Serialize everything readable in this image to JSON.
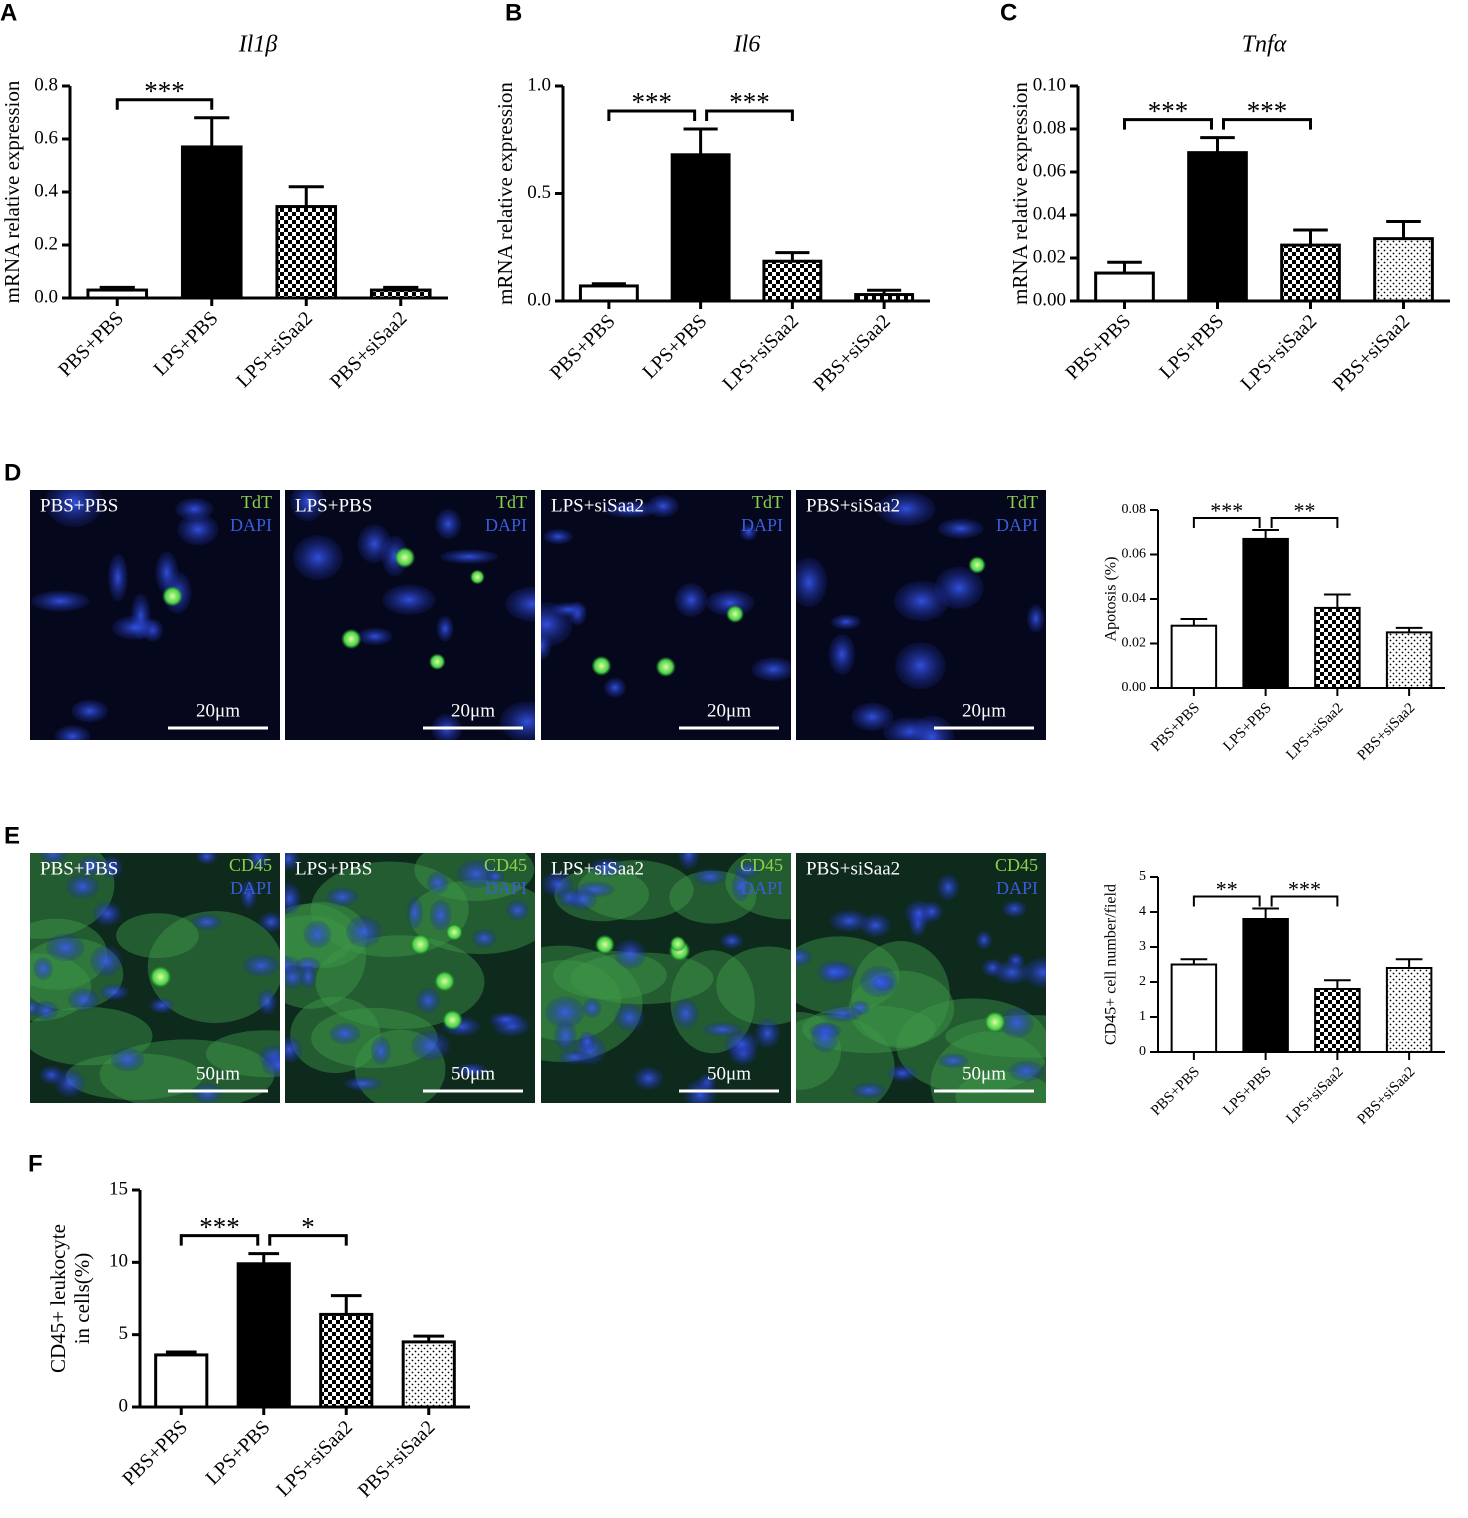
{
  "chart_data": [
    {
      "type": "bar",
      "panel_label": "A",
      "title": "Il1β",
      "ylabel": "mRNA relative expression",
      "categories": [
        "PBS+PBS",
        "LPS+PBS",
        "LPS+siSaa2",
        "PBS+siSaa2"
      ],
      "values": [
        0.03,
        0.57,
        0.345,
        0.03
      ],
      "errors": [
        0.01,
        0.11,
        0.075,
        0.01
      ],
      "fills": [
        "white",
        "black",
        "checker",
        "checker"
      ],
      "ylim": [
        0,
        0.8
      ],
      "yticks": [
        {
          "value": 0,
          "label": "0.0"
        },
        0.2,
        0.4,
        0.6,
        0.8
      ],
      "significance": [
        {
          "label": "***",
          "between": [
            0,
            1
          ]
        }
      ]
    },
    {
      "type": "bar",
      "panel_label": "B",
      "title": "Il6",
      "ylabel": "mRNA relative expression",
      "categories": [
        "PBS+PBS",
        "LPS+PBS",
        "LPS+siSaa2",
        "PBS+siSaa2"
      ],
      "values": [
        0.07,
        0.68,
        0.185,
        0.03
      ],
      "errors": [
        0.01,
        0.12,
        0.04,
        0.02
      ],
      "fills": [
        "white",
        "black",
        "checker",
        "checker"
      ],
      "ylim": [
        0,
        1
      ],
      "yticks": [
        {
          "value": 0,
          "label": "0.0"
        },
        0.5,
        {
          "value": 1,
          "label": "1.0"
        }
      ],
      "significance": [
        {
          "label": "***",
          "between": [
            0,
            1
          ]
        },
        {
          "label": "***",
          "between": [
            1,
            2
          ]
        }
      ]
    },
    {
      "type": "bar",
      "panel_label": "C",
      "title": "Tnfα",
      "ylabel": "mRNA relative expression",
      "categories": [
        "PBS+PBS",
        "LPS+PBS",
        "LPS+siSaa2",
        "PBS+siSaa2"
      ],
      "values": [
        0.013,
        0.069,
        0.026,
        0.029
      ],
      "errors": [
        0.005,
        0.007,
        0.007,
        0.008
      ],
      "fills": [
        "white",
        "black",
        "checker",
        "dots"
      ],
      "ylim": [
        0,
        0.1
      ],
      "yticks": [
        {
          "value": 0,
          "label": "0.00"
        },
        0.02,
        0.04,
        0.06,
        0.08,
        {
          "value": 0.1,
          "label": "0.10"
        }
      ],
      "significance": [
        {
          "label": "***",
          "between": [
            0,
            1
          ]
        },
        {
          "label": "***",
          "between": [
            1,
            2
          ]
        }
      ]
    },
    {
      "type": "bar",
      "ylabel": "Apotosis (%)",
      "categories": [
        "PBS+PBS",
        "LPS+PBS",
        "LPS+siSaa2",
        "PBS+siSaa2"
      ],
      "values": [
        0.028,
        0.067,
        0.036,
        0.025
      ],
      "errors": [
        0.003,
        0.004,
        0.006,
        0.002
      ],
      "fills": [
        "white",
        "black",
        "checker",
        "dots"
      ],
      "ylim": [
        0,
        0.08
      ],
      "yticks": [
        {
          "value": 0,
          "label": "0.00"
        },
        0.02,
        0.04,
        0.06,
        0.08
      ],
      "significance": [
        {
          "label": "***",
          "between": [
            0,
            1
          ]
        },
        {
          "label": "**",
          "between": [
            1,
            2
          ]
        }
      ]
    },
    {
      "type": "bar",
      "ylabel": "CD45+ cell number/field",
      "categories": [
        "PBS+PBS",
        "LPS+PBS",
        "LPS+siSaa2",
        "PBS+siSaa2"
      ],
      "values": [
        2.5,
        3.8,
        1.8,
        2.4
      ],
      "errors": [
        0.15,
        0.3,
        0.25,
        0.25
      ],
      "fills": [
        "white",
        "black",
        "checker",
        "dots"
      ],
      "ylim": [
        0,
        5
      ],
      "yticks": [
        0,
        1,
        2,
        3,
        4,
        5
      ],
      "significance": [
        {
          "label": "**",
          "between": [
            0,
            1
          ]
        },
        {
          "label": "***",
          "between": [
            1,
            2
          ]
        }
      ]
    },
    {
      "type": "bar",
      "panel_label": "F",
      "ylabel": [
        "CD45+ leukocyte",
        "in cells(%)"
      ],
      "categories": [
        "PBS+PBS",
        "LPS+PBS",
        "LPS+siSaa2",
        "PBS+siSaa2"
      ],
      "values": [
        3.6,
        9.9,
        6.4,
        4.5
      ],
      "errors": [
        0.2,
        0.7,
        1.3,
        0.4
      ],
      "fills": [
        "white",
        "black",
        "checker",
        "dots"
      ],
      "ylim": [
        0,
        15
      ],
      "yticks": [
        0,
        5,
        10,
        15
      ],
      "significance": [
        {
          "label": "***",
          "between": [
            0,
            1
          ]
        },
        {
          "label": "*",
          "between": [
            1,
            2
          ]
        }
      ]
    }
  ],
  "micrographs": [
    {
      "panel_label": "D",
      "marker": "TdT",
      "counterstain": "DAPI",
      "scale_bar": "20μm",
      "groups": [
        "PBS+PBS",
        "LPS+PBS",
        "LPS+siSaa2",
        "PBS+siSaa2"
      ]
    },
    {
      "panel_label": "E",
      "marker": "CD45",
      "counterstain": "DAPI",
      "scale_bar": "50μm",
      "groups": [
        "PBS+PBS",
        "LPS+PBS",
        "LPS+siSaa2",
        "PBS+siSaa2"
      ]
    }
  ]
}
